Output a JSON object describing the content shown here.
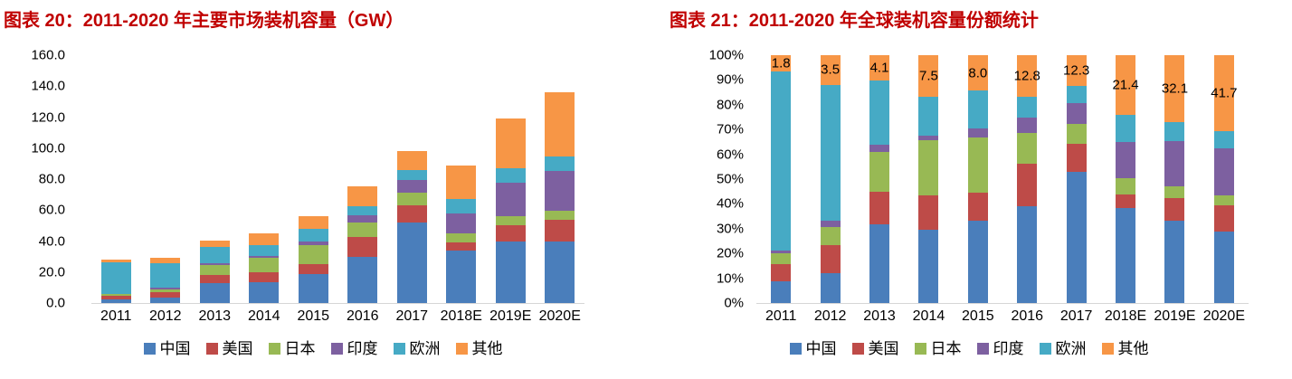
{
  "colors": {
    "title_red": "#C00000",
    "axis_line": "#D6D6D6",
    "china_blue": "#4A7EBB",
    "usa_red": "#BE4B48",
    "japan_green": "#98B954",
    "india_purple": "#7D60A0",
    "europe_teal": "#46AAC5",
    "others_orange": "#F79646"
  },
  "chart_data": [
    {
      "type": "bar",
      "stacked": true,
      "title": "图表 20：2011-2020 年主要市场装机容量（GW）",
      "grid": false,
      "legend_position": "bottom",
      "ylim": [
        0,
        160
      ],
      "ystep": 20,
      "y_tick_labels": [
        "160.0",
        "140.0",
        "120.0",
        "100.0",
        "80.0",
        "60.0",
        "40.0",
        "20.0",
        "0.0"
      ],
      "categories": [
        "2011",
        "2012",
        "2013",
        "2014",
        "2015",
        "2016",
        "2017",
        "2018E",
        "2019E",
        "2020E"
      ],
      "series": [
        {
          "name": "中国",
          "color": "#4A7EBB",
          "values": [
            2.5,
            3.5,
            12.9,
            13.3,
            18.6,
            29.5,
            52.0,
            34.0,
            39.5,
            39.5
          ]
        },
        {
          "name": "美国",
          "color": "#BE4B48",
          "values": [
            1.9,
            3.4,
            5.3,
            6.3,
            6.4,
            13.0,
            11.0,
            5.0,
            10.8,
            14.5
          ]
        },
        {
          "name": "日本",
          "color": "#98B954",
          "values": [
            1.2,
            2.1,
            6.5,
            9.9,
            12.5,
            9.4,
            8.0,
            5.8,
            5.8,
            5.5
          ]
        },
        {
          "name": "印度",
          "color": "#7D60A0",
          "values": [
            0.3,
            0.8,
            1.1,
            0.9,
            2.0,
            4.5,
            8.5,
            13.0,
            21.5,
            25.5
          ]
        },
        {
          "name": "欧洲",
          "color": "#46AAC5",
          "values": [
            20.4,
            16.0,
            10.5,
            7.0,
            8.5,
            6.3,
            6.5,
            9.5,
            9.3,
            9.5
          ]
        },
        {
          "name": "其他",
          "color": "#F79646",
          "values": [
            1.8,
            3.5,
            4.1,
            7.5,
            8.0,
            12.8,
            12.3,
            21.4,
            32.1,
            41.7
          ]
        }
      ]
    },
    {
      "type": "bar",
      "stacked": true,
      "percent": true,
      "title": "图表 21：2011-2020 年全球装机容量份额统计",
      "grid": false,
      "legend_position": "bottom",
      "ylim": [
        0,
        100
      ],
      "ystep": 10,
      "y_tick_labels": [
        "100%",
        "90%",
        "80%",
        "70%",
        "60%",
        "50%",
        "40%",
        "30%",
        "20%",
        "10%",
        "0%"
      ],
      "categories": [
        "2011",
        "2012",
        "2013",
        "2014",
        "2015",
        "2016",
        "2017",
        "2018E",
        "2019E",
        "2020E"
      ],
      "series": [
        {
          "name": "中国",
          "color": "#4A7EBB",
          "values": [
            8.9,
            11.9,
            31.9,
            29.6,
            33.2,
            39.1,
            52.9,
            38.3,
            33.2,
            29.0
          ]
        },
        {
          "name": "美国",
          "color": "#BE4B48",
          "values": [
            6.8,
            11.6,
            13.1,
            14.0,
            11.4,
            17.2,
            11.2,
            5.6,
            9.1,
            10.6
          ]
        },
        {
          "name": "日本",
          "color": "#98B954",
          "values": [
            4.3,
            7.2,
            16.1,
            22.0,
            22.3,
            12.5,
            8.1,
            6.5,
            4.9,
            4.0
          ]
        },
        {
          "name": "印度",
          "color": "#7D60A0",
          "values": [
            1.1,
            2.7,
            2.7,
            2.0,
            3.6,
            6.0,
            8.6,
            14.7,
            18.1,
            18.7
          ]
        },
        {
          "name": "欧洲",
          "color": "#46AAC5",
          "values": [
            72.5,
            54.7,
            26.1,
            15.7,
            15.2,
            8.3,
            6.7,
            10.7,
            7.8,
            7.0
          ]
        },
        {
          "name": "其他",
          "color": "#F79646",
          "values": [
            6.4,
            11.9,
            10.1,
            16.7,
            14.3,
            16.9,
            12.5,
            24.2,
            26.9,
            30.7
          ]
        }
      ],
      "data_labels": {
        "series": "其他",
        "values": [
          "1.8",
          "3.5",
          "4.1",
          "7.5",
          "8.0",
          "12.8",
          "12.3",
          "21.4",
          "32.1",
          "41.7"
        ]
      }
    }
  ]
}
